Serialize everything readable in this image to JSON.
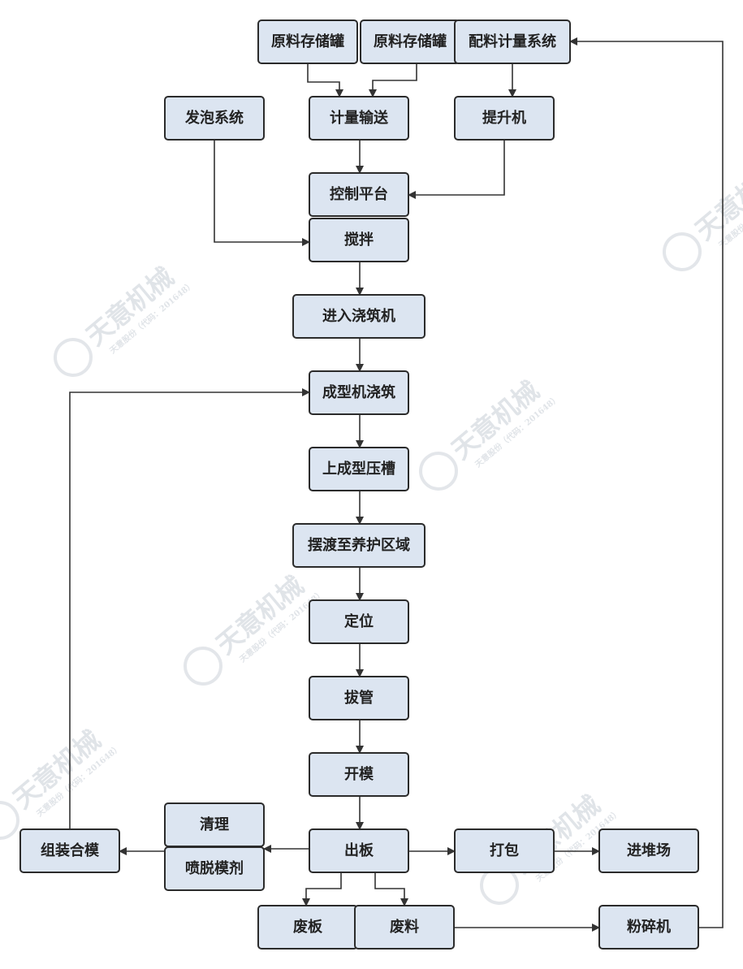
{
  "watermark": {
    "brand": "天意机械",
    "sub": "天意股份（代码：201648）"
  },
  "colors": {
    "node_fill": "#dce5f1",
    "node_stroke": "#2b2b2b",
    "edge": "#333333"
  },
  "nodes": [
    {
      "id": "raw1",
      "label": "原料存储罐"
    },
    {
      "id": "raw2",
      "label": "原料存储罐"
    },
    {
      "id": "batch",
      "label": "配料计量系统"
    },
    {
      "id": "foam",
      "label": "发泡系统"
    },
    {
      "id": "meter",
      "label": "计量输送"
    },
    {
      "id": "lift",
      "label": "提升机"
    },
    {
      "id": "ctrl",
      "label": "控制平台"
    },
    {
      "id": "mix",
      "label": "搅拌"
    },
    {
      "id": "pour_in",
      "label": "进入浇筑机"
    },
    {
      "id": "form",
      "label": "成型机浇筑"
    },
    {
      "id": "groove",
      "label": "上成型压槽"
    },
    {
      "id": "ferry",
      "label": "摆渡至养护区域"
    },
    {
      "id": "locate",
      "label": "定位"
    },
    {
      "id": "pull",
      "label": "拔管"
    },
    {
      "id": "open",
      "label": "开模"
    },
    {
      "id": "out",
      "label": "出板"
    },
    {
      "id": "clean",
      "label": "清理"
    },
    {
      "id": "spray",
      "label": "喷脱模剂"
    },
    {
      "id": "assemble",
      "label": "组装合模"
    },
    {
      "id": "pack",
      "label": "打包"
    },
    {
      "id": "yard",
      "label": "进堆场"
    },
    {
      "id": "waste_board",
      "label": "废板"
    },
    {
      "id": "waste_mat",
      "label": "废料"
    },
    {
      "id": "crusher",
      "label": "粉碎机"
    }
  ],
  "edges": [
    {
      "from": "raw1",
      "to": "meter"
    },
    {
      "from": "raw2",
      "to": "meter"
    },
    {
      "from": "batch",
      "to": "lift"
    },
    {
      "from": "meter",
      "to": "ctrl"
    },
    {
      "from": "lift",
      "to": "ctrl"
    },
    {
      "from": "foam",
      "to": "mix"
    },
    {
      "from": "mix",
      "to": "pour_in"
    },
    {
      "from": "pour_in",
      "to": "form"
    },
    {
      "from": "form",
      "to": "groove"
    },
    {
      "from": "groove",
      "to": "ferry"
    },
    {
      "from": "ferry",
      "to": "locate"
    },
    {
      "from": "locate",
      "to": "pull"
    },
    {
      "from": "pull",
      "to": "open"
    },
    {
      "from": "open",
      "to": "out"
    },
    {
      "from": "out",
      "to": "clean"
    },
    {
      "from": "spray",
      "to": "assemble"
    },
    {
      "from": "assemble",
      "to": "form"
    },
    {
      "from": "out",
      "to": "pack"
    },
    {
      "from": "pack",
      "to": "yard"
    },
    {
      "from": "out",
      "to": "waste_board"
    },
    {
      "from": "out",
      "to": "waste_mat"
    },
    {
      "from": "waste_mat",
      "to": "crusher"
    },
    {
      "from": "crusher",
      "to": "batch"
    }
  ]
}
